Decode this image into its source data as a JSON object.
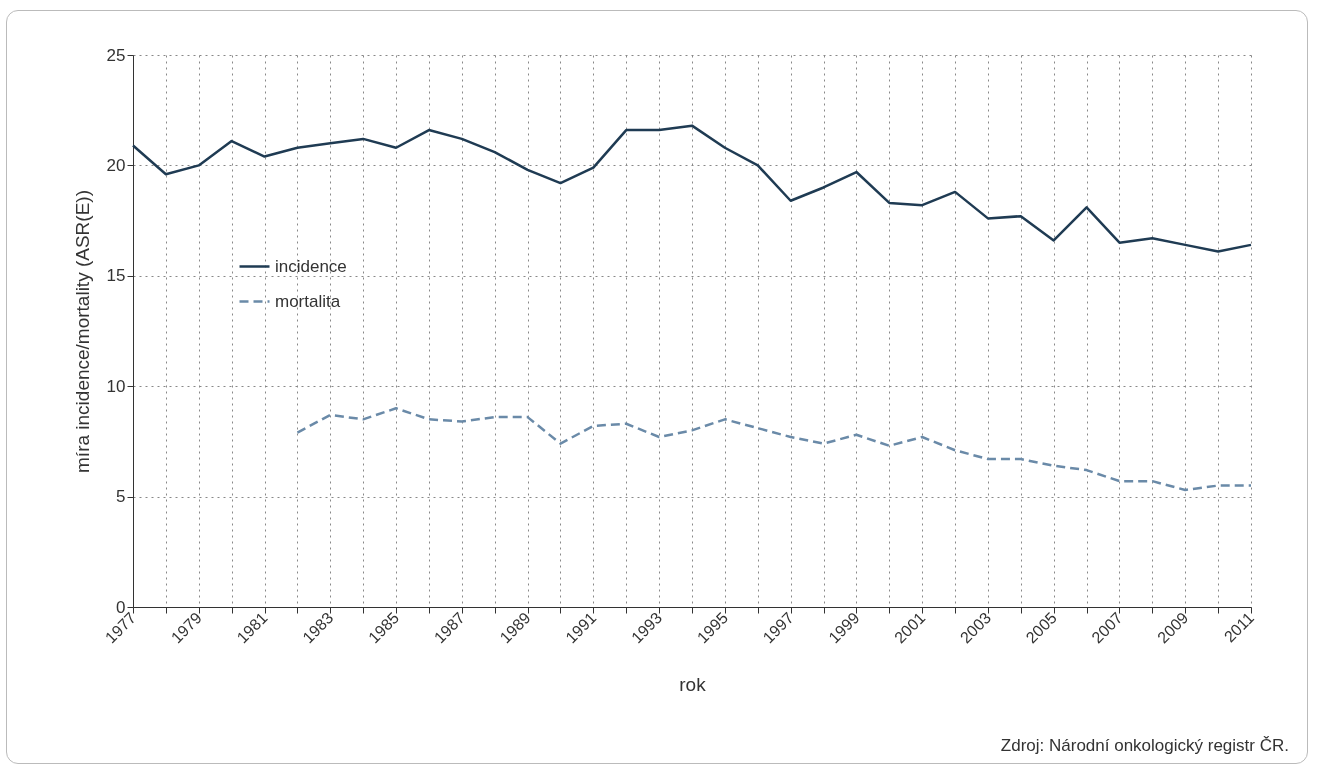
{
  "chart_data": {
    "type": "line",
    "xlabel": "rok",
    "ylabel": "míra incidence/mortality (ASR(E))",
    "x": [
      1977,
      1978,
      1979,
      1980,
      1981,
      1982,
      1983,
      1984,
      1985,
      1986,
      1987,
      1988,
      1989,
      1990,
      1991,
      1992,
      1993,
      1994,
      1995,
      1996,
      1997,
      1998,
      1999,
      2000,
      2001,
      2002,
      2003,
      2004,
      2005,
      2006,
      2007,
      2008,
      2009,
      2010,
      2011
    ],
    "series": [
      {
        "name": "incidence",
        "color": "#1f3b53",
        "line_style": "solid",
        "values": [
          20.9,
          19.6,
          20.0,
          21.1,
          20.4,
          20.8,
          21.0,
          21.2,
          20.8,
          21.6,
          21.2,
          20.6,
          19.8,
          19.2,
          19.9,
          21.6,
          21.6,
          21.8,
          20.8,
          20.0,
          18.4,
          19.0,
          19.7,
          18.3,
          18.2,
          18.8,
          17.6,
          17.7,
          16.6,
          18.1,
          16.5,
          16.7,
          16.4,
          16.1,
          16.4
        ]
      },
      {
        "name": "mortalita",
        "color": "#6a8aa8",
        "line_style": "dashed",
        "values": [
          null,
          null,
          null,
          null,
          null,
          7.9,
          8.7,
          8.5,
          9.0,
          8.5,
          8.4,
          8.6,
          8.6,
          7.4,
          8.2,
          8.3,
          7.7,
          8.0,
          8.5,
          8.1,
          7.7,
          7.4,
          7.8,
          7.3,
          7.7,
          7.1,
          6.7,
          6.7,
          6.4,
          6.2,
          5.7,
          5.7,
          5.3,
          5.5,
          5.5
        ]
      }
    ],
    "xlim": [
      1977,
      2011
    ],
    "xticks": [
      1977,
      {
        "value": 1978,
        "label": null
      },
      1979,
      {
        "value": 1980,
        "label": null
      },
      1981,
      {
        "value": 1982,
        "label": null
      },
      1983,
      {
        "value": 1984,
        "label": null
      },
      1985,
      {
        "value": 1986,
        "label": null
      },
      1987,
      {
        "value": 1988,
        "label": null
      },
      1989,
      {
        "value": 1990,
        "label": null
      },
      1991,
      {
        "value": 1992,
        "label": null
      },
      1993,
      {
        "value": 1994,
        "label": null
      },
      1995,
      {
        "value": 1996,
        "label": null
      },
      1997,
      {
        "value": 1998,
        "label": null
      },
      1999,
      {
        "value": 2000,
        "label": null
      },
      2001,
      {
        "value": 2002,
        "label": null
      },
      2003,
      {
        "value": 2004,
        "label": null
      },
      2005,
      {
        "value": 2006,
        "label": null
      },
      2007,
      {
        "value": 2008,
        "label": null
      },
      2009,
      {
        "value": 2010,
        "label": null
      },
      2011
    ],
    "ylim": [
      0,
      25
    ],
    "yticks": [
      0,
      5,
      10,
      15,
      20,
      25
    ],
    "grid": true,
    "legend": "left",
    "marker": "none",
    "annotations": [
      "Zdroj: Národní onkologický registr ČR."
    ]
  }
}
